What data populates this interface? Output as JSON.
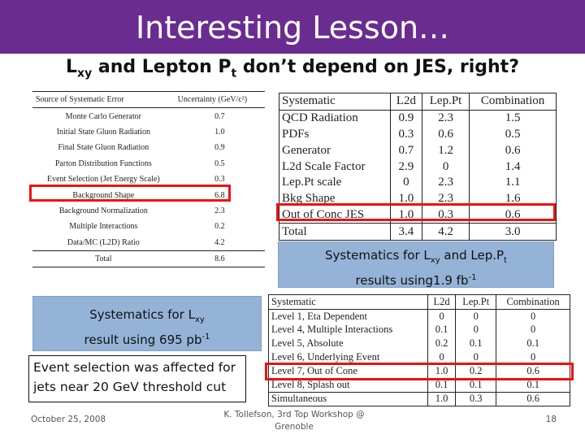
{
  "slide": {
    "title": "Interesting Lesson…",
    "subtitle": {
      "p1": "L",
      "s1": "xy",
      "p2": " and Lepton P",
      "s2": "t",
      "p3": " don’t depend on JES, right?"
    }
  },
  "table1": {
    "headers": [
      "Source of Systematic Error",
      "Uncertainty (GeV/c²)"
    ],
    "rows": [
      [
        "Monte Carlo Generator",
        "0.7"
      ],
      [
        "Initial State Gluon Radiation",
        "1.0"
      ],
      [
        "Final State Gluon Radiation",
        "0.9"
      ],
      [
        "Parton Distribution Functions",
        "0.5"
      ],
      [
        "Event Selection (Jet Energy Scale)",
        "0.3"
      ],
      [
        "Background Shape",
        "6.8"
      ],
      [
        "Background Normalization",
        "2.3"
      ],
      [
        "Multiple Interactions",
        "0.2"
      ],
      [
        "Data/MC (L2D) Ratio",
        "4.2"
      ],
      [
        "Total",
        "8.6"
      ]
    ]
  },
  "table2": {
    "headers": [
      "Systematic",
      "L2d",
      "Lep.Pt",
      "Combination"
    ],
    "rows": [
      [
        "QCD Radiation",
        "0.9",
        "2.3",
        "1.5"
      ],
      [
        "PDFs",
        "0.3",
        "0.6",
        "0.5"
      ],
      [
        "Generator",
        "0.7",
        "1.2",
        "0.6"
      ],
      [
        "L2d Scale Factor",
        "2.9",
        "0",
        "1.4"
      ],
      [
        "Lep.Pt scale",
        "0",
        "2.3",
        "1.1"
      ],
      [
        "Bkg Shape",
        "1.0",
        "2.3",
        "1.6"
      ],
      [
        "Out of Conc JES",
        "1.0",
        "0.3",
        "0.6"
      ]
    ],
    "total": [
      "Total",
      "3.4",
      "4.2",
      "3.0"
    ]
  },
  "table3": {
    "headers": [
      "Systematic",
      "L2d",
      "Lep.Pt",
      "Combination"
    ],
    "rows": [
      [
        "Level 1, Eta Dependent",
        "0",
        "0",
        "0"
      ],
      [
        "Level 4, Multiple Interactions",
        "0.1",
        "0",
        "0"
      ],
      [
        "Level 5, Absolute",
        "0.2",
        "0.1",
        "0.1"
      ],
      [
        "Level 6, Underlying Event",
        "0",
        "0",
        "0"
      ],
      [
        "Level 7, Out of Cone",
        "1.0",
        "0.2",
        "0.6"
      ],
      [
        "Level 8, Splash out",
        "0.1",
        "0.1",
        "0.1"
      ]
    ],
    "total": [
      "Simultaneous",
      "1.0",
      "0.3",
      "0.6"
    ]
  },
  "caption_lxy_leppt": {
    "a": "Systematics for L",
    "b": "xy",
    "c": " and Lep.P",
    "d": "t",
    "e": "results using1.9 fb",
    "f": "-1"
  },
  "caption_lxy": {
    "a": "Systematics for L",
    "b": "xy",
    "c": "result using 695 pb",
    "d": "-1"
  },
  "note": "Event selection was affected for jets near 20 GeV threshold cut",
  "footer": {
    "date": "October 25, 2008",
    "author": "K. Tollefson, 3rd Top Workshop @ Grenoble",
    "page": "18"
  },
  "colors": {
    "title_bar": "#6a2c91",
    "highlight": "#e11",
    "caption_box": "#95b3d7"
  }
}
